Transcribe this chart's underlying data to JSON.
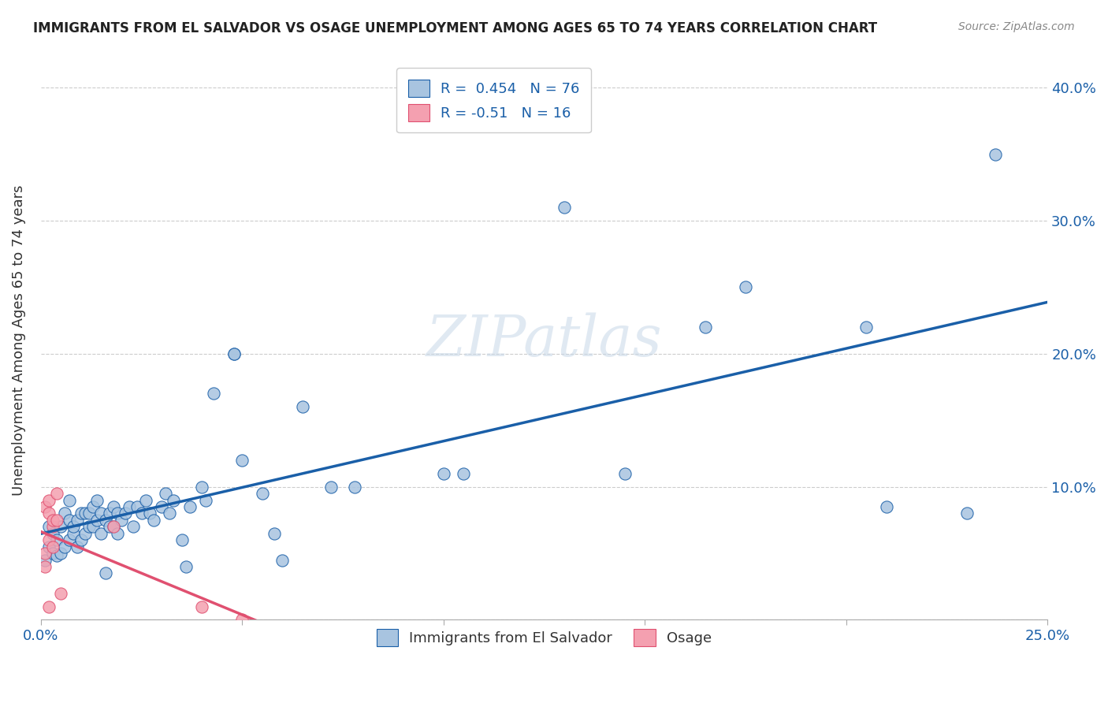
{
  "title": "IMMIGRANTS FROM EL SALVADOR VS OSAGE UNEMPLOYMENT AMONG AGES 65 TO 74 YEARS CORRELATION CHART",
  "source": "Source: ZipAtlas.com",
  "xlabel_blue": "Immigrants from El Salvador",
  "xlabel_pink": "Osage",
  "ylabel": "Unemployment Among Ages 65 to 74 years",
  "xlim": [
    0.0,
    0.25
  ],
  "ylim": [
    0.0,
    0.42
  ],
  "xticks": [
    0.0,
    0.05,
    0.1,
    0.15,
    0.2,
    0.25
  ],
  "yticks": [
    0.0,
    0.1,
    0.2,
    0.3,
    0.4
  ],
  "blue_R": 0.454,
  "blue_N": 76,
  "pink_R": -0.51,
  "pink_N": 16,
  "blue_color": "#a8c4e0",
  "pink_color": "#f4a0b0",
  "blue_line_color": "#1a5fa8",
  "pink_line_color": "#e05070",
  "blue_scatter": [
    [
      0.001,
      0.045
    ],
    [
      0.002,
      0.055
    ],
    [
      0.002,
      0.07
    ],
    [
      0.003,
      0.05
    ],
    [
      0.003,
      0.065
    ],
    [
      0.004,
      0.048
    ],
    [
      0.004,
      0.06
    ],
    [
      0.005,
      0.07
    ],
    [
      0.005,
      0.05
    ],
    [
      0.006,
      0.055
    ],
    [
      0.006,
      0.08
    ],
    [
      0.007,
      0.06
    ],
    [
      0.007,
      0.075
    ],
    [
      0.007,
      0.09
    ],
    [
      0.008,
      0.065
    ],
    [
      0.008,
      0.07
    ],
    [
      0.009,
      0.055
    ],
    [
      0.009,
      0.075
    ],
    [
      0.01,
      0.06
    ],
    [
      0.01,
      0.08
    ],
    [
      0.011,
      0.065
    ],
    [
      0.011,
      0.08
    ],
    [
      0.012,
      0.07
    ],
    [
      0.012,
      0.08
    ],
    [
      0.013,
      0.07
    ],
    [
      0.013,
      0.085
    ],
    [
      0.014,
      0.075
    ],
    [
      0.014,
      0.09
    ],
    [
      0.015,
      0.065
    ],
    [
      0.015,
      0.08
    ],
    [
      0.016,
      0.035
    ],
    [
      0.016,
      0.075
    ],
    [
      0.017,
      0.07
    ],
    [
      0.017,
      0.08
    ],
    [
      0.018,
      0.07
    ],
    [
      0.018,
      0.085
    ],
    [
      0.019,
      0.065
    ],
    [
      0.019,
      0.08
    ],
    [
      0.02,
      0.075
    ],
    [
      0.021,
      0.08
    ],
    [
      0.022,
      0.085
    ],
    [
      0.023,
      0.07
    ],
    [
      0.024,
      0.085
    ],
    [
      0.025,
      0.08
    ],
    [
      0.026,
      0.09
    ],
    [
      0.027,
      0.08
    ],
    [
      0.028,
      0.075
    ],
    [
      0.03,
      0.085
    ],
    [
      0.031,
      0.095
    ],
    [
      0.032,
      0.08
    ],
    [
      0.033,
      0.09
    ],
    [
      0.035,
      0.06
    ],
    [
      0.036,
      0.04
    ],
    [
      0.037,
      0.085
    ],
    [
      0.04,
      0.1
    ],
    [
      0.041,
      0.09
    ],
    [
      0.043,
      0.17
    ],
    [
      0.048,
      0.2
    ],
    [
      0.048,
      0.2
    ],
    [
      0.05,
      0.12
    ],
    [
      0.055,
      0.095
    ],
    [
      0.058,
      0.065
    ],
    [
      0.06,
      0.045
    ],
    [
      0.065,
      0.16
    ],
    [
      0.072,
      0.1
    ],
    [
      0.078,
      0.1
    ],
    [
      0.1,
      0.11
    ],
    [
      0.105,
      0.11
    ],
    [
      0.13,
      0.31
    ],
    [
      0.145,
      0.11
    ],
    [
      0.165,
      0.22
    ],
    [
      0.175,
      0.25
    ],
    [
      0.205,
      0.22
    ],
    [
      0.21,
      0.085
    ],
    [
      0.23,
      0.08
    ],
    [
      0.237,
      0.35
    ]
  ],
  "pink_scatter": [
    [
      0.001,
      0.085
    ],
    [
      0.001,
      0.05
    ],
    [
      0.001,
      0.04
    ],
    [
      0.002,
      0.08
    ],
    [
      0.002,
      0.09
    ],
    [
      0.002,
      0.06
    ],
    [
      0.002,
      0.01
    ],
    [
      0.003,
      0.07
    ],
    [
      0.003,
      0.055
    ],
    [
      0.003,
      0.075
    ],
    [
      0.004,
      0.095
    ],
    [
      0.004,
      0.075
    ],
    [
      0.005,
      0.02
    ],
    [
      0.018,
      0.07
    ],
    [
      0.04,
      0.01
    ],
    [
      0.05,
      0.0
    ]
  ],
  "watermark": "ZIPatlas",
  "background_color": "#ffffff",
  "grid_color": "#cccccc"
}
